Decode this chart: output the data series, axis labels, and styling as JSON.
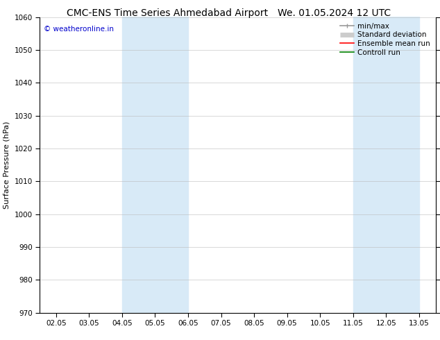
{
  "title_left": "CMC-ENS Time Series Ahmedabad Airport",
  "title_right": "We. 01.05.2024 12 UTC",
  "ylabel": "Surface Pressure (hPa)",
  "ylim": [
    970,
    1060
  ],
  "yticks": [
    970,
    980,
    990,
    1000,
    1010,
    1020,
    1030,
    1040,
    1050,
    1060
  ],
  "xtick_labels": [
    "02.05",
    "03.05",
    "04.05",
    "05.05",
    "06.05",
    "07.05",
    "08.05",
    "09.05",
    "10.05",
    "11.05",
    "12.05",
    "13.05"
  ],
  "xtick_positions": [
    0,
    1,
    2,
    3,
    4,
    5,
    6,
    7,
    8,
    9,
    10,
    11
  ],
  "xlim": [
    -0.5,
    11.5
  ],
  "shaded_bands": [
    {
      "xmin": 2,
      "xmax": 4,
      "color": "#d8eaf7"
    },
    {
      "xmin": 9,
      "xmax": 11,
      "color": "#d8eaf7"
    }
  ],
  "watermark": "© weatheronline.in",
  "watermark_color": "#0000cc",
  "legend_entries": [
    {
      "label": "min/max",
      "color": "#999999",
      "lw": 1.2
    },
    {
      "label": "Standard deviation",
      "color": "#cccccc",
      "lw": 5
    },
    {
      "label": "Ensemble mean run",
      "color": "#ff0000",
      "lw": 1.2
    },
    {
      "label": "Controll run",
      "color": "#008000",
      "lw": 1.2
    }
  ],
  "bg_color": "#ffffff",
  "grid_color": "#bbbbbb",
  "title_fontsize": 10,
  "ylabel_fontsize": 8,
  "tick_fontsize": 7.5,
  "legend_fontsize": 7.5,
  "watermark_fontsize": 7.5
}
